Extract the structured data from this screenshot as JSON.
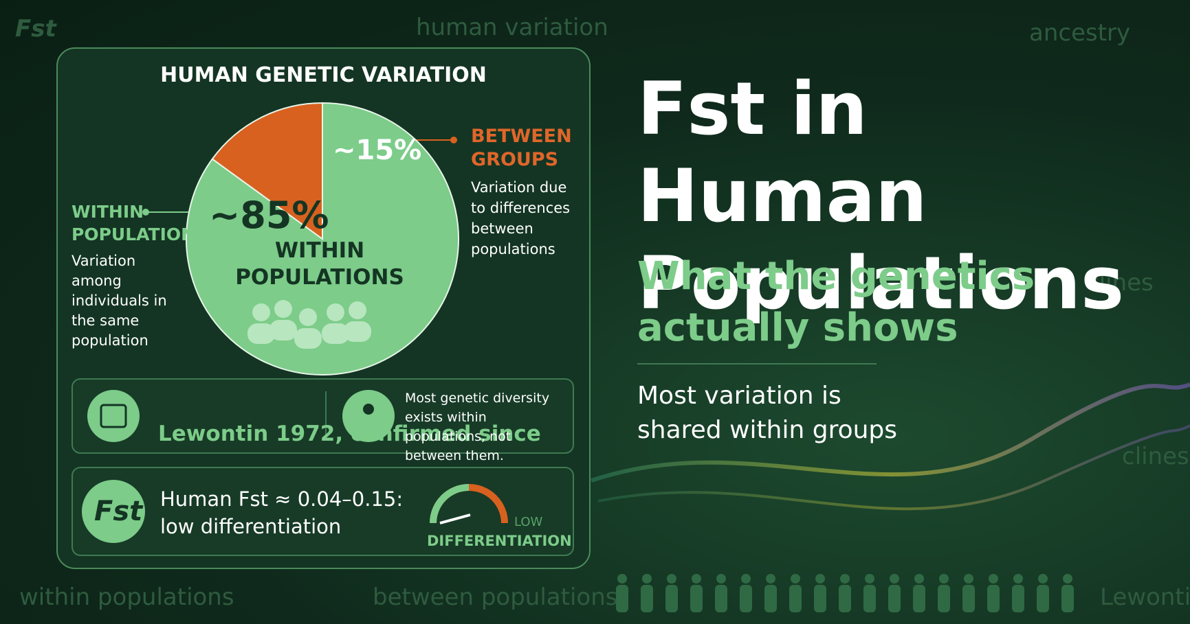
{
  "background_words": [
    "Fst",
    "human variation",
    "ancestry",
    "clines",
    "clines",
    "within populations",
    "between populations",
    "Lewontin"
  ],
  "chart_data": {
    "type": "pie",
    "title": "HUMAN GENETIC VARIATION",
    "categories": [
      "WITHIN POPULATIONS",
      "BETWEEN GROUPS"
    ],
    "values": [
      85,
      15
    ],
    "value_labels": [
      "~85%",
      "~15%"
    ],
    "colors": [
      "#7dcc8a",
      "#d8611f"
    ]
  },
  "annotations": [
    {
      "title": "WITHIN POPULATIONS",
      "text": "Variation among individuals in the same population"
    },
    {
      "text": "Variation due to differences between populations"
    }
  ],
  "facts": [
    "Lewontin 1972, confirmed since",
    "Most genetic diversity exists within populations, not between them."
  ],
  "fst_box": {
    "icon": "Fst",
    "text": "Human Fst ≈ 0.04–0.15:",
    "text2": "low differentiation",
    "gauge_low": "LOW",
    "gauge_label": "DIFFERENTIATION"
  },
  "headline": {
    "title": "Fst in Human Populations",
    "subtitle": "What the genetics actually shows",
    "tagline": "Most variation is shared within groups"
  }
}
